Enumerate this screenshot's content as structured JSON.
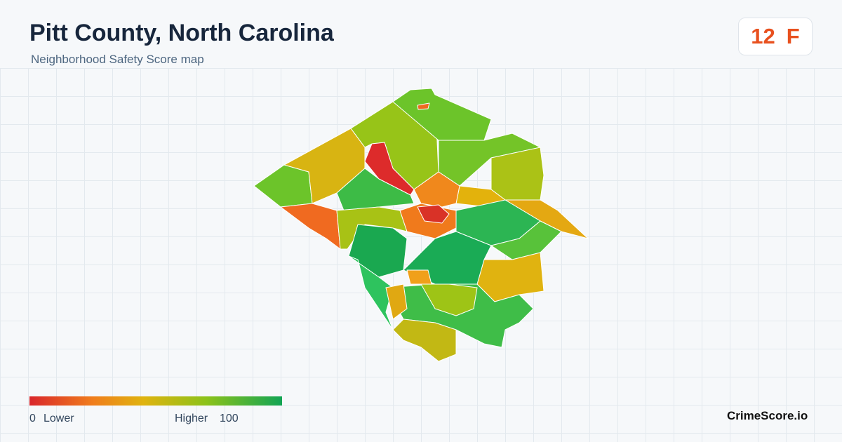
{
  "header": {
    "title": "Pitt County, North Carolina",
    "subtitle": "Neighborhood Safety Score map"
  },
  "score": {
    "value": 12,
    "grade": "F"
  },
  "legend": {
    "min": 0,
    "min_label": "Lower",
    "max_label": "Higher",
    "max": 100
  },
  "brand": "CrimeScore.io"
}
